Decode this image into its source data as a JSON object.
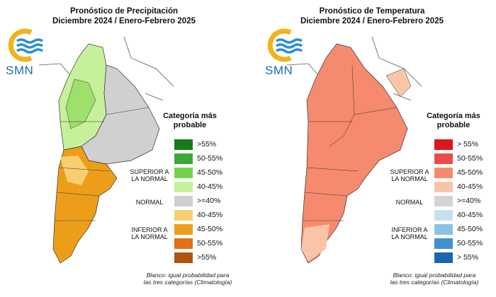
{
  "left": {
    "title_line1": "Pronóstico de Precipitación",
    "title_line2": "Diciembre 2024 / Enero-Febrero 2025",
    "logo_text": "SMN",
    "legend_title_1": "Categoría más",
    "legend_title_2": "probable",
    "groups": {
      "superior_1": "SUPERIOR A",
      "superior_2": "LA NORMAL",
      "normal": "NORMAL",
      "inferior_1": "INFERIOR A",
      "inferior_2": "LA NORMAL"
    },
    "legend": [
      {
        "label": ">55%",
        "color": "#1a7a1a"
      },
      {
        "label": "50-55%",
        "color": "#3aa83a"
      },
      {
        "label": "45-50%",
        "color": "#74d24a"
      },
      {
        "label": "40-45%",
        "color": "#c6f09a"
      },
      {
        "label": ">=40%",
        "color": "#cfcfcf"
      },
      {
        "label": "40-45%",
        "color": "#f7cf72"
      },
      {
        "label": "45-50%",
        "color": "#ec9e1a"
      },
      {
        "label": "50-55%",
        "color": "#e0701a"
      },
      {
        "label": ">55%",
        "color": "#b0540e"
      }
    ],
    "note_1": "Blanco: igual probabilidad para",
    "note_2": "las tres categorías (Climatología)"
  },
  "right": {
    "title_line1": "Pronóstico de Temperatura",
    "title_line2": "Diciembre 2024 / Enero-Febrero 2025",
    "logo_text": "SMN",
    "legend_title_1": "Categoría más",
    "legend_title_2": "probable",
    "groups": {
      "superior_1": "SUPERIOR A",
      "superior_2": "LA NORMAL",
      "normal": "NORMAL",
      "inferior_1": "INFERIOR A",
      "inferior_2": "LA NORMAL"
    },
    "legend": [
      {
        "label": "> 55%",
        "color": "#d7191c"
      },
      {
        "label": "50-55%",
        "color": "#ec4a4a"
      },
      {
        "label": "45-50%",
        "color": "#f68a6e"
      },
      {
        "label": "40-45%",
        "color": "#f9c4a8"
      },
      {
        "label": ">=40%",
        "color": "#d4d4d4"
      },
      {
        "label": "40-45%",
        "color": "#c7dff0"
      },
      {
        "label": "45-50%",
        "color": "#8cc1e6"
      },
      {
        "label": "50-55%",
        "color": "#3f92d2"
      },
      {
        "label": "> 55%",
        "color": "#1a65b0"
      }
    ],
    "note_1": "Blanco: igual probabilidad para",
    "note_2": "las tres categorías (Climatología)"
  }
}
